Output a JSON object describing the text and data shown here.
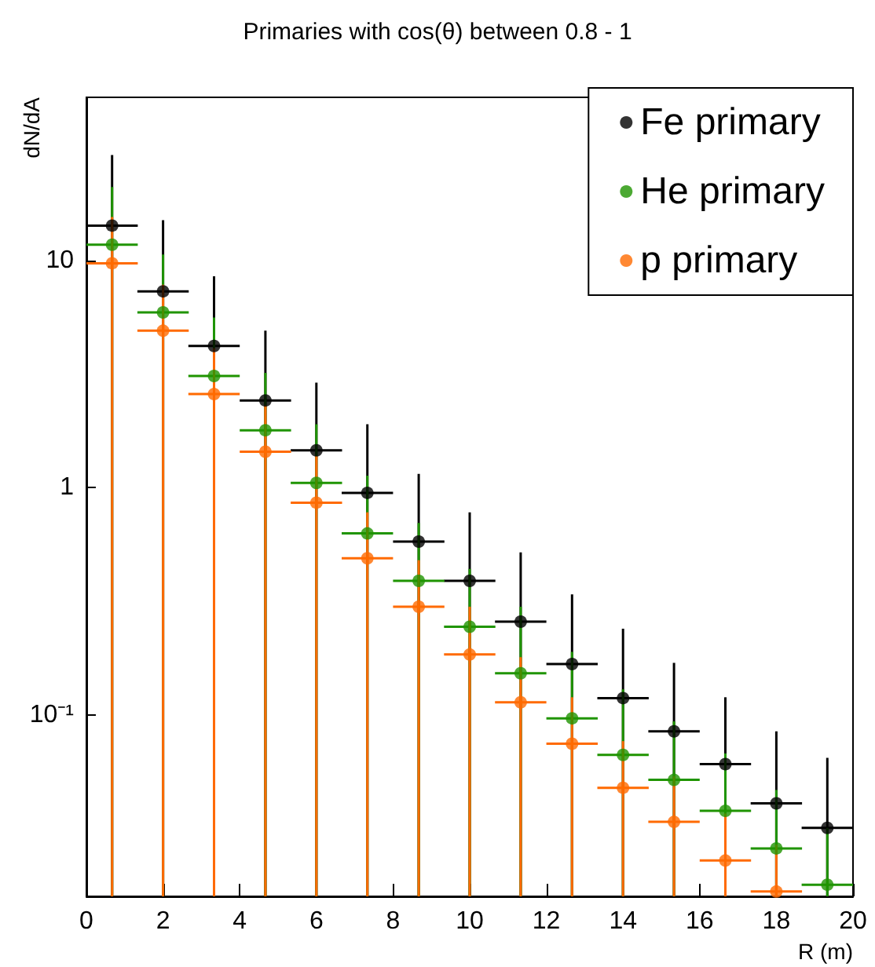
{
  "chart_data": {
    "type": "scatter",
    "title": "Primaries with cos(θ) between 0.8 - 1",
    "xlabel": "R (m)",
    "ylabel": "dN/dA",
    "x": [
      0.67,
      2,
      3.33,
      4.67,
      6,
      7.33,
      8.67,
      10,
      11.33,
      12.67,
      14,
      15.33,
      16.67,
      18,
      19.33
    ],
    "series": [
      {
        "name": "Fe primary",
        "color": "#000000",
        "values": [
          14.2,
          7.3,
          4.2,
          2.42,
          1.46,
          0.95,
          0.58,
          0.39,
          0.258,
          0.168,
          0.119,
          0.085,
          0.061,
          0.041,
          0.032
        ],
        "errors": [
          [
            0.016,
            29
          ],
          [
            0.016,
            15
          ],
          [
            0.016,
            8.5
          ],
          [
            0.016,
            4.9
          ],
          [
            0.016,
            2.9
          ],
          [
            0.016,
            1.9
          ],
          [
            0.016,
            1.15
          ],
          [
            0.016,
            0.78
          ],
          [
            0.016,
            0.52
          ],
          [
            0.016,
            0.34
          ],
          [
            0.016,
            0.24
          ],
          [
            0.016,
            0.17
          ],
          [
            0.016,
            0.12
          ],
          [
            0.016,
            0.085
          ],
          [
            0.016,
            0.065
          ]
        ],
        "xerrors": [
          0.67,
          0.67,
          0.67,
          0.67,
          0.67,
          0.67,
          0.67,
          0.67,
          0.67,
          0.67,
          0.67,
          0.67,
          0.67,
          0.67,
          0.67
        ]
      },
      {
        "name": "He primary",
        "color": "#1f9400",
        "values": [
          11.7,
          5.9,
          3.1,
          1.79,
          1.05,
          0.63,
          0.39,
          0.245,
          0.153,
          0.097,
          0.067,
          0.052,
          0.038,
          0.026,
          0.018
        ],
        "errors": [
          [
            0.016,
            21
          ],
          [
            0.016,
            10.6
          ],
          [
            0.016,
            5.6
          ],
          [
            0.016,
            3.2
          ],
          [
            0.016,
            1.9
          ],
          [
            0.016,
            1.13
          ],
          [
            0.016,
            0.7
          ],
          [
            0.016,
            0.44
          ],
          [
            0.016,
            0.3
          ],
          [
            0.016,
            0.19
          ],
          [
            0.016,
            0.13
          ],
          [
            0.016,
            0.094
          ],
          [
            0.016,
            0.068
          ],
          [
            0.016,
            0.047
          ],
          [
            0.016,
            0.032
          ]
        ],
        "xerrors": [
          0.67,
          0.67,
          0.67,
          0.67,
          0.67,
          0.67,
          0.67,
          0.67,
          0.67,
          0.67,
          0.67,
          0.67,
          0.67,
          0.67,
          0.67
        ]
      },
      {
        "name": "p primary",
        "color": "#ff6a00",
        "values": [
          9.7,
          4.9,
          2.58,
          1.44,
          0.86,
          0.49,
          0.3,
          0.185,
          0.114,
          0.075,
          0.048,
          0.034,
          0.023,
          0.0168,
          null
        ],
        "errors": [
          [
            0.016,
            15.5
          ],
          [
            0.016,
            7.8
          ],
          [
            0.016,
            4.1
          ],
          [
            0.016,
            2.3
          ],
          [
            0.016,
            1.38
          ],
          [
            0.016,
            0.78
          ],
          [
            0.016,
            0.48
          ],
          [
            0.016,
            0.3
          ],
          [
            0.016,
            0.18
          ],
          [
            0.016,
            0.12
          ],
          [
            0.016,
            0.077
          ],
          [
            0.016,
            0.054
          ],
          [
            0.016,
            0.037
          ],
          [
            0.016,
            0.027
          ],
          null
        ],
        "xerrors": [
          0.67,
          0.67,
          0.67,
          0.67,
          0.67,
          0.67,
          0.67,
          0.67,
          0.67,
          0.67,
          0.67,
          0.67,
          0.67,
          0.67,
          null
        ]
      }
    ],
    "xlim": [
      0,
      20
    ],
    "xticks": [
      0,
      2,
      4,
      6,
      8,
      10,
      12,
      14,
      16,
      18,
      20
    ],
    "ylim": [
      0.016,
      52
    ],
    "yticks": [
      {
        "value": 0.1,
        "label": "10⁻¹"
      },
      1,
      10
    ],
    "log": "y",
    "grid": false,
    "legend": "top right",
    "marker": "circle"
  }
}
